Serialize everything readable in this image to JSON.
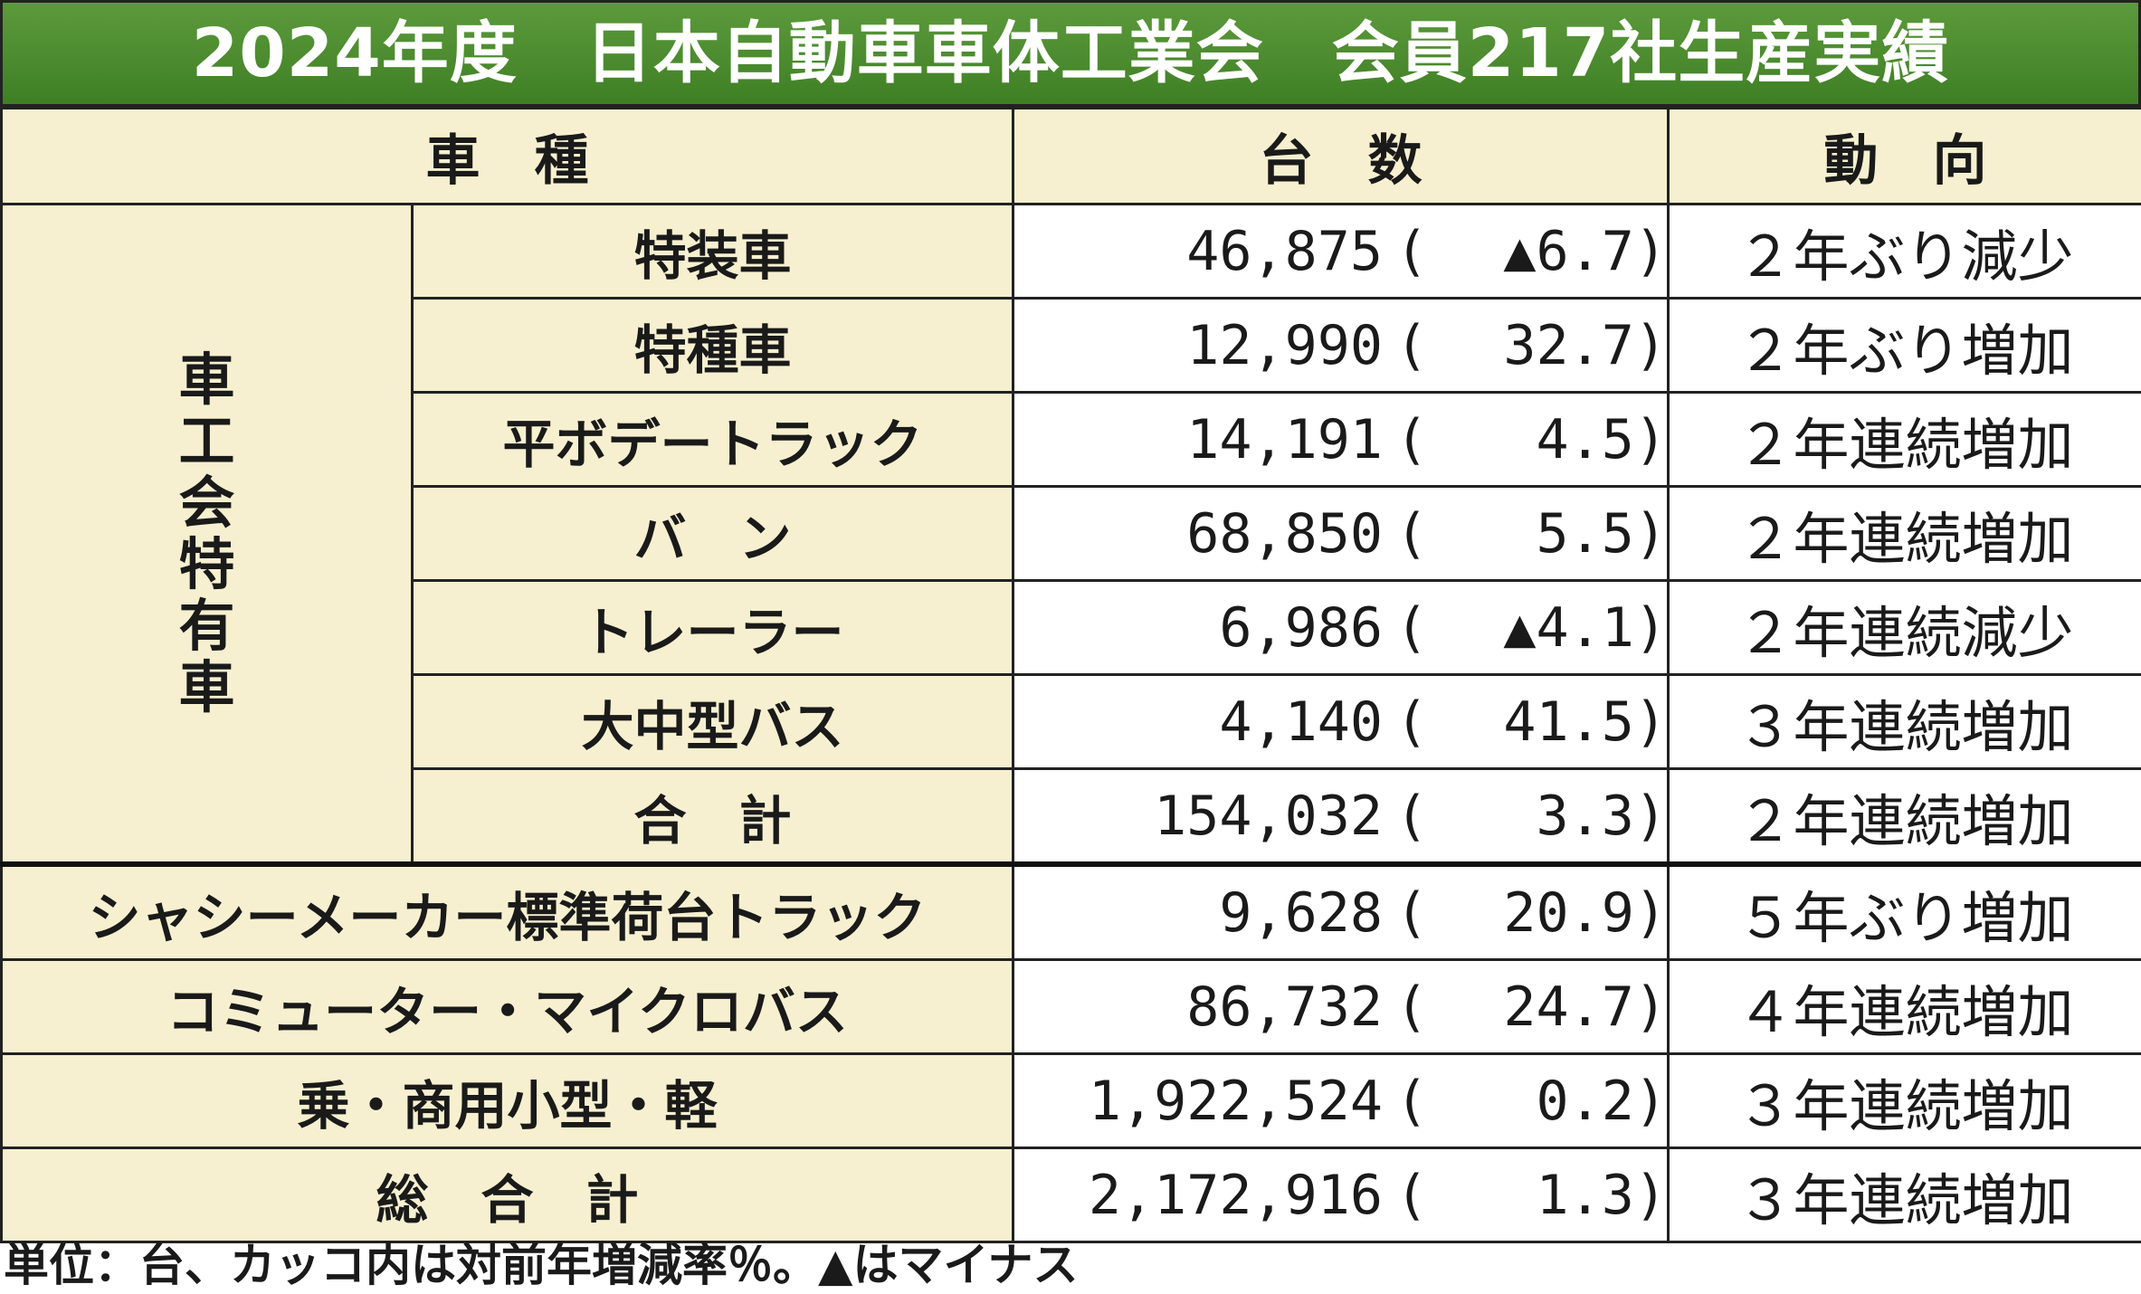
{
  "title": "2024年度　日本自動車車体工業会　会員217社生産実績",
  "headers": {
    "type": "車　種",
    "count": "台　数",
    "trend": "動　向"
  },
  "group_label": "車工会特有車",
  "group_rows": [
    {
      "name": "特装車",
      "count": "46,875",
      "pct": "▲6.7",
      "trend": "２年ぶり減少"
    },
    {
      "name": "特種車",
      "count": "12,990",
      "pct": "32.7",
      "trend": "２年ぶり増加"
    },
    {
      "name": "平ボデートラック",
      "count": "14,191",
      "pct": "4.5",
      "trend": "２年連続増加"
    },
    {
      "name": "バ　ン",
      "count": "68,850",
      "pct": "5.5",
      "trend": "２年連続増加"
    },
    {
      "name": "トレーラー",
      "count": "6,986",
      "pct": "▲4.1",
      "trend": "２年連続減少"
    },
    {
      "name": "大中型バス",
      "count": "4,140",
      "pct": "41.5",
      "trend": "３年連続増加"
    },
    {
      "name": "合　計",
      "count": "154,032",
      "pct": "3.3",
      "trend": "２年連続増加"
    }
  ],
  "other_rows": [
    {
      "name": "シャシーメーカー標準荷台トラック",
      "count": "9,628",
      "pct": "20.9",
      "trend": "５年ぶり増加"
    },
    {
      "name": "コミューター・マイクロバス",
      "count": "86,732",
      "pct": "24.7",
      "trend": "４年連続増加"
    },
    {
      "name": "乗・商用小型・軽",
      "count": "1,922,524",
      "pct": "0.2",
      "trend": "３年連続増加"
    },
    {
      "name": "総　合　計",
      "count": "2,172,916",
      "pct": "1.3",
      "trend": "３年連続増加"
    }
  ],
  "footnote": "単位：台、カッコ内は対前年増減率％。▲はマイナス"
}
